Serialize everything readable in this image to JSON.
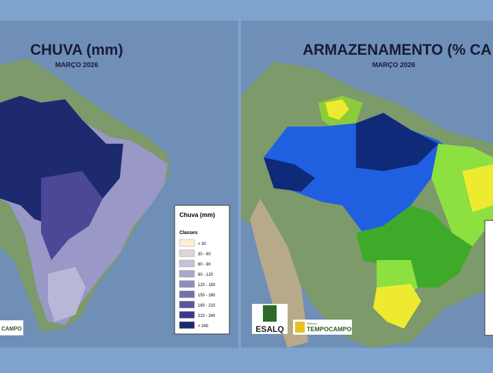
{
  "left_panel": {
    "title": "CHUVA (mm)",
    "subtitle": "MARÇO 2026",
    "legend": {
      "title": "Chuva (mm)",
      "subtitle": "Classes",
      "classes": [
        {
          "label": "< 30",
          "color": "#fbefd0"
        },
        {
          "label": "30 - 60",
          "color": "#dcd6d9"
        },
        {
          "label": "60 - 90",
          "color": "#c4c1d8"
        },
        {
          "label": "90 - 120",
          "color": "#a9a7cc"
        },
        {
          "label": "120 - 150",
          "color": "#8f8dbe"
        },
        {
          "label": "150 - 180",
          "color": "#7471b0"
        },
        {
          "label": "180 - 210",
          "color": "#5a56a1"
        },
        {
          "label": "210 - 240",
          "color": "#3b3a8c"
        },
        {
          "label": "> 240",
          "color": "#1a2a6c"
        }
      ]
    },
    "logo": "CAMPO"
  },
  "right_panel": {
    "title": "ARMAZENAMENTO (% CA",
    "subtitle": "MARÇO 2026",
    "logo_left": "ESALQ",
    "logo_right_small": "Sistema",
    "logo_right": "TEMPOCAMPO"
  }
}
